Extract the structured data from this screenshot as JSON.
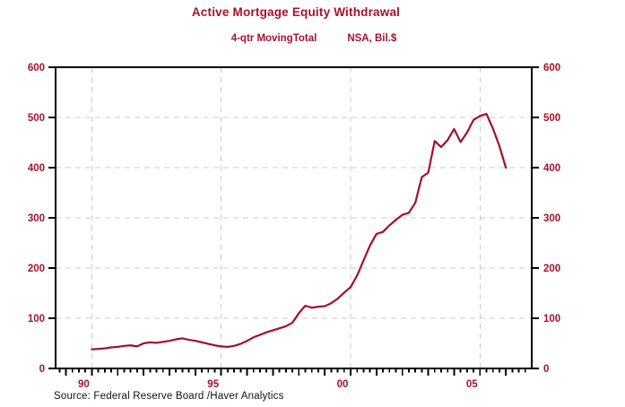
{
  "title": "Active Mortgage Equity Withdrawal",
  "subtitle": {
    "measure": "4-qtr MovingTotal",
    "units": "NSA, Bil.$"
  },
  "source": "Source:  Federal Reserve Board /Haver Analytics",
  "colors": {
    "line": "#A40E2D",
    "red_text": "#A4122E",
    "grid": "#CBCBCB",
    "axis": "#000000",
    "source_text": "#111111"
  },
  "chart_data": {
    "type": "line",
    "title": "Active Mortgage Equity Withdrawal",
    "subtitle": "4-qtr MovingTotal    NSA, Bil.$",
    "series_name": "Active Mortgage Equity Withdrawal, 4-qtr moving total (NSA, Bil.$)",
    "x_start_year": 1990.0,
    "x_step_years": 0.25,
    "start_quarter": "1990Q1",
    "end_quarter": "2006Q1",
    "values": [
      38,
      39,
      40,
      42,
      43,
      45,
      46,
      44,
      50,
      52,
      51,
      53,
      55,
      58,
      60,
      57,
      55,
      52,
      49,
      46,
      44,
      43,
      45,
      49,
      55,
      62,
      67,
      72,
      76,
      80,
      84,
      91,
      110,
      125,
      121,
      123,
      124,
      130,
      139,
      151,
      162,
      185,
      215,
      245,
      268,
      272,
      285,
      296,
      306,
      310,
      330,
      381,
      390,
      453,
      441,
      455,
      477,
      451,
      470,
      495,
      503,
      507,
      478,
      443,
      400
    ],
    "x_axis": {
      "range": [
        1988.6,
        2007.0
      ],
      "major_tick_years": [
        1990,
        1995,
        2000,
        2005
      ],
      "tick_labels": [
        "90",
        "95",
        "00",
        "05"
      ],
      "minor_tick_interval_years": 0.25,
      "year_tick_interval": 1
    },
    "y_axis": {
      "range": [
        0,
        600
      ],
      "ticks": [
        0,
        100,
        200,
        300,
        400,
        500,
        600
      ],
      "labels_both_sides": true
    },
    "grid": "dashed, light gray at every labeled tick",
    "legend_position": "none"
  }
}
